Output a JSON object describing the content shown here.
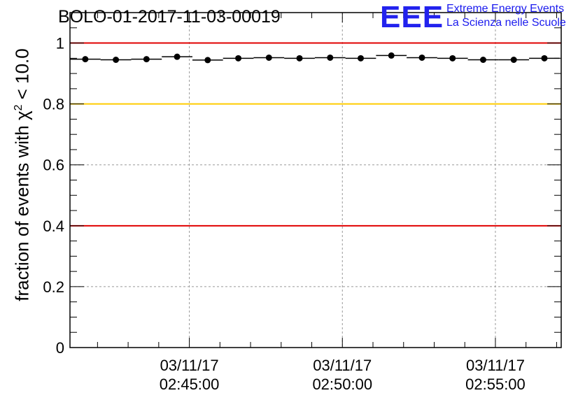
{
  "title": "BOLO-01-2017-11-03-00019",
  "logo": {
    "mark": "EEE",
    "line1": "Extreme Energy Events",
    "line2": "La Scienza nelle Scuole"
  },
  "colors": {
    "red_line": "#e00000",
    "yellow_line": "#ffcc00",
    "points": "#000000",
    "logo": "#1a1aee"
  },
  "chart_data": {
    "type": "scatter",
    "title": "BOLO-01-2017-11-03-00019",
    "ylabel_prefix": "fraction of events with ",
    "ylabel_symbol": "χ",
    "ylabel_sup": "2",
    "ylabel_suffix": " < 10.0",
    "xlabel": "",
    "ylim": [
      0,
      1.1
    ],
    "yticks": [
      "0",
      "0.2",
      "0.4",
      "0.6",
      "0.8",
      "1"
    ],
    "ytick_values": [
      0,
      0.2,
      0.4,
      0.6,
      0.8,
      1.0
    ],
    "xlim_minutes": [
      41.1,
      57.15
    ],
    "xticks": [
      {
        "date": "03/11/17",
        "time": "02:45:00",
        "minute": 45
      },
      {
        "date": "03/11/17",
        "time": "02:50:00",
        "minute": 50
      },
      {
        "date": "03/11/17",
        "time": "02:55:00",
        "minute": 55
      }
    ],
    "grid": true,
    "reference_lines": [
      {
        "y": 1.0,
        "color": "#e00000"
      },
      {
        "y": 0.8,
        "color": "#ffcc00"
      },
      {
        "y": 0.4,
        "color": "#e00000"
      }
    ],
    "points": [
      {
        "x": 41.6,
        "y": 0.947
      },
      {
        "x": 42.6,
        "y": 0.945
      },
      {
        "x": 43.6,
        "y": 0.947
      },
      {
        "x": 44.6,
        "y": 0.955
      },
      {
        "x": 45.6,
        "y": 0.944
      },
      {
        "x": 46.6,
        "y": 0.95
      },
      {
        "x": 47.6,
        "y": 0.952
      },
      {
        "x": 48.6,
        "y": 0.95
      },
      {
        "x": 49.6,
        "y": 0.952
      },
      {
        "x": 50.6,
        "y": 0.95
      },
      {
        "x": 51.6,
        "y": 0.959
      },
      {
        "x": 52.6,
        "y": 0.952
      },
      {
        "x": 53.6,
        "y": 0.95
      },
      {
        "x": 54.6,
        "y": 0.945
      },
      {
        "x": 55.6,
        "y": 0.945
      },
      {
        "x": 56.6,
        "y": 0.95
      }
    ]
  }
}
